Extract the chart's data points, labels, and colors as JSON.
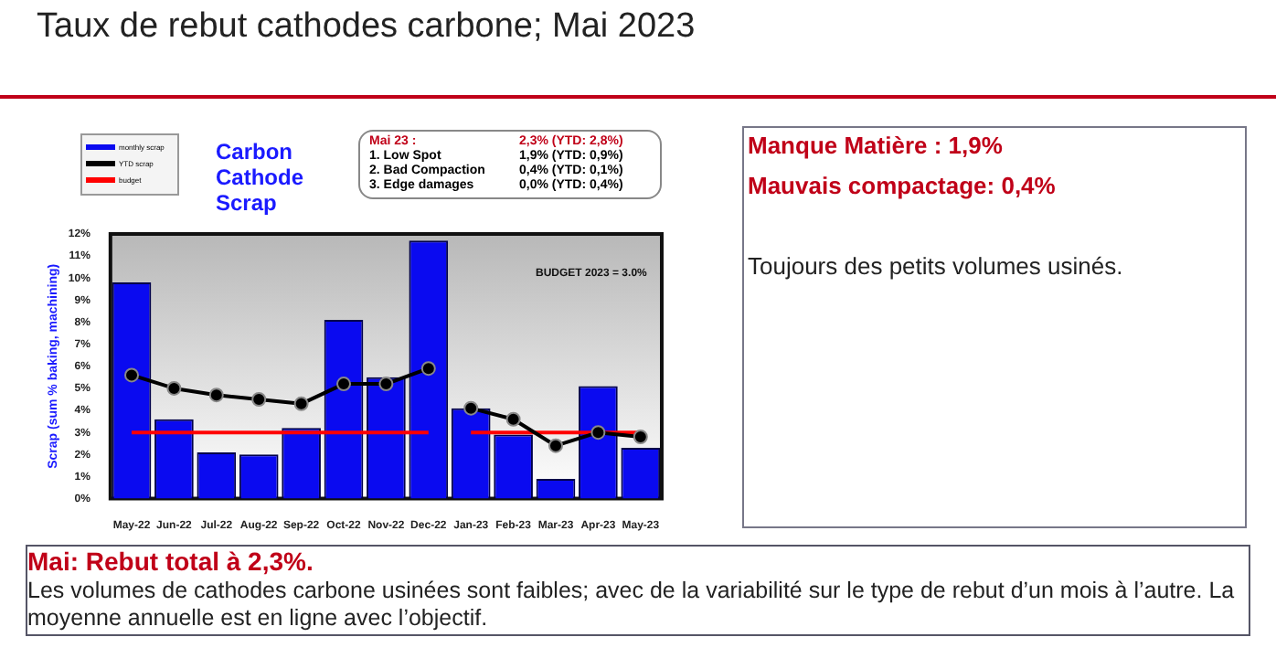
{
  "chart_data": {
    "type": "bar",
    "title": "Carbon Cathode Scrap",
    "ylabel": "Scrap (sum % baking, machining)",
    "categories": [
      "May-22",
      "Jun-22",
      "Jul-22",
      "Aug-22",
      "Sep-22",
      "Oct-22",
      "Nov-22",
      "Dec-22",
      "Jan-23",
      "Feb-23",
      "Mar-23",
      "Apr-23",
      "May-23"
    ],
    "series": [
      {
        "name": "monthly scrap",
        "color": "#0a0af0",
        "values": [
          9.8,
          3.6,
          2.1,
          2.0,
          3.2,
          8.1,
          5.5,
          11.7,
          4.1,
          2.9,
          0.9,
          5.1,
          2.3
        ]
      },
      {
        "name": "YTD scrap",
        "type": "line",
        "color": "#000000",
        "marker": "circle",
        "values": [
          5.6,
          5.0,
          4.7,
          4.5,
          4.3,
          5.2,
          5.2,
          5.9,
          null,
          null,
          null,
          null,
          null
        ]
      },
      {
        "type": "line",
        "color": "#000000",
        "marker": "circle",
        "values": [
          null,
          null,
          null,
          null,
          null,
          null,
          null,
          null,
          4.1,
          3.6,
          2.4,
          3.0,
          2.8
        ]
      },
      {
        "name": "budget",
        "type": "line",
        "color": "#ff0000",
        "marker": "none",
        "values": [
          3.0,
          3.0,
          3.0,
          3.0,
          3.0,
          3.0,
          3.0,
          3.0,
          null,
          null,
          null,
          null,
          null
        ]
      },
      {
        "type": "line",
        "color": "#ff0000",
        "marker": "none",
        "values": [
          null,
          null,
          null,
          null,
          null,
          null,
          null,
          null,
          3.0,
          3.0,
          3.0,
          3.0,
          3.0
        ]
      }
    ],
    "ylim": [
      0,
      12
    ],
    "yticks": [
      {
        "value": 0,
        "label": "0%"
      },
      {
        "value": 1,
        "label": "1%"
      },
      {
        "value": 2,
        "label": "2%"
      },
      {
        "value": 3,
        "label": "3%"
      },
      {
        "value": 4,
        "label": "4%"
      },
      {
        "value": 5,
        "label": "5%"
      },
      {
        "value": 6,
        "label": "6%"
      },
      {
        "value": 7,
        "label": "7%"
      },
      {
        "value": 8,
        "label": "8%"
      },
      {
        "value": 9,
        "label": "9%"
      },
      {
        "value": 10,
        "label": "10%"
      },
      {
        "value": 11,
        "label": "11%"
      },
      {
        "value": 12,
        "label": "12%"
      }
    ],
    "grid": false,
    "legend": "top left",
    "annotations": [
      "Taux de rebut cathodes carbone; Mai 2023",
      "Mai 23 :",
      "2,3% (YTD: 2,8%)",
      "1. Low Spot",
      "1,9% (YTD: 0,9%)",
      "2. Bad Compaction",
      "0,4% (YTD: 0,1%)",
      "3. Edge damages",
      "0,0% (YTD: 0,4%)",
      "BUDGET 2023 = 3.0%",
      "Manque Matière : 1,9%",
      "Mauvais compactage: 0,4%",
      "Toujours des petits volumes usinés.",
      "Mai: Rebut total à 2,3%.",
      "Les volumes de cathodes carbone usinées sont faibles; avec de la variabilité sur le type de rebut d’un mois à l’autre. La moyenne annuelle est en ligne avec l’objectif."
    ]
  }
}
